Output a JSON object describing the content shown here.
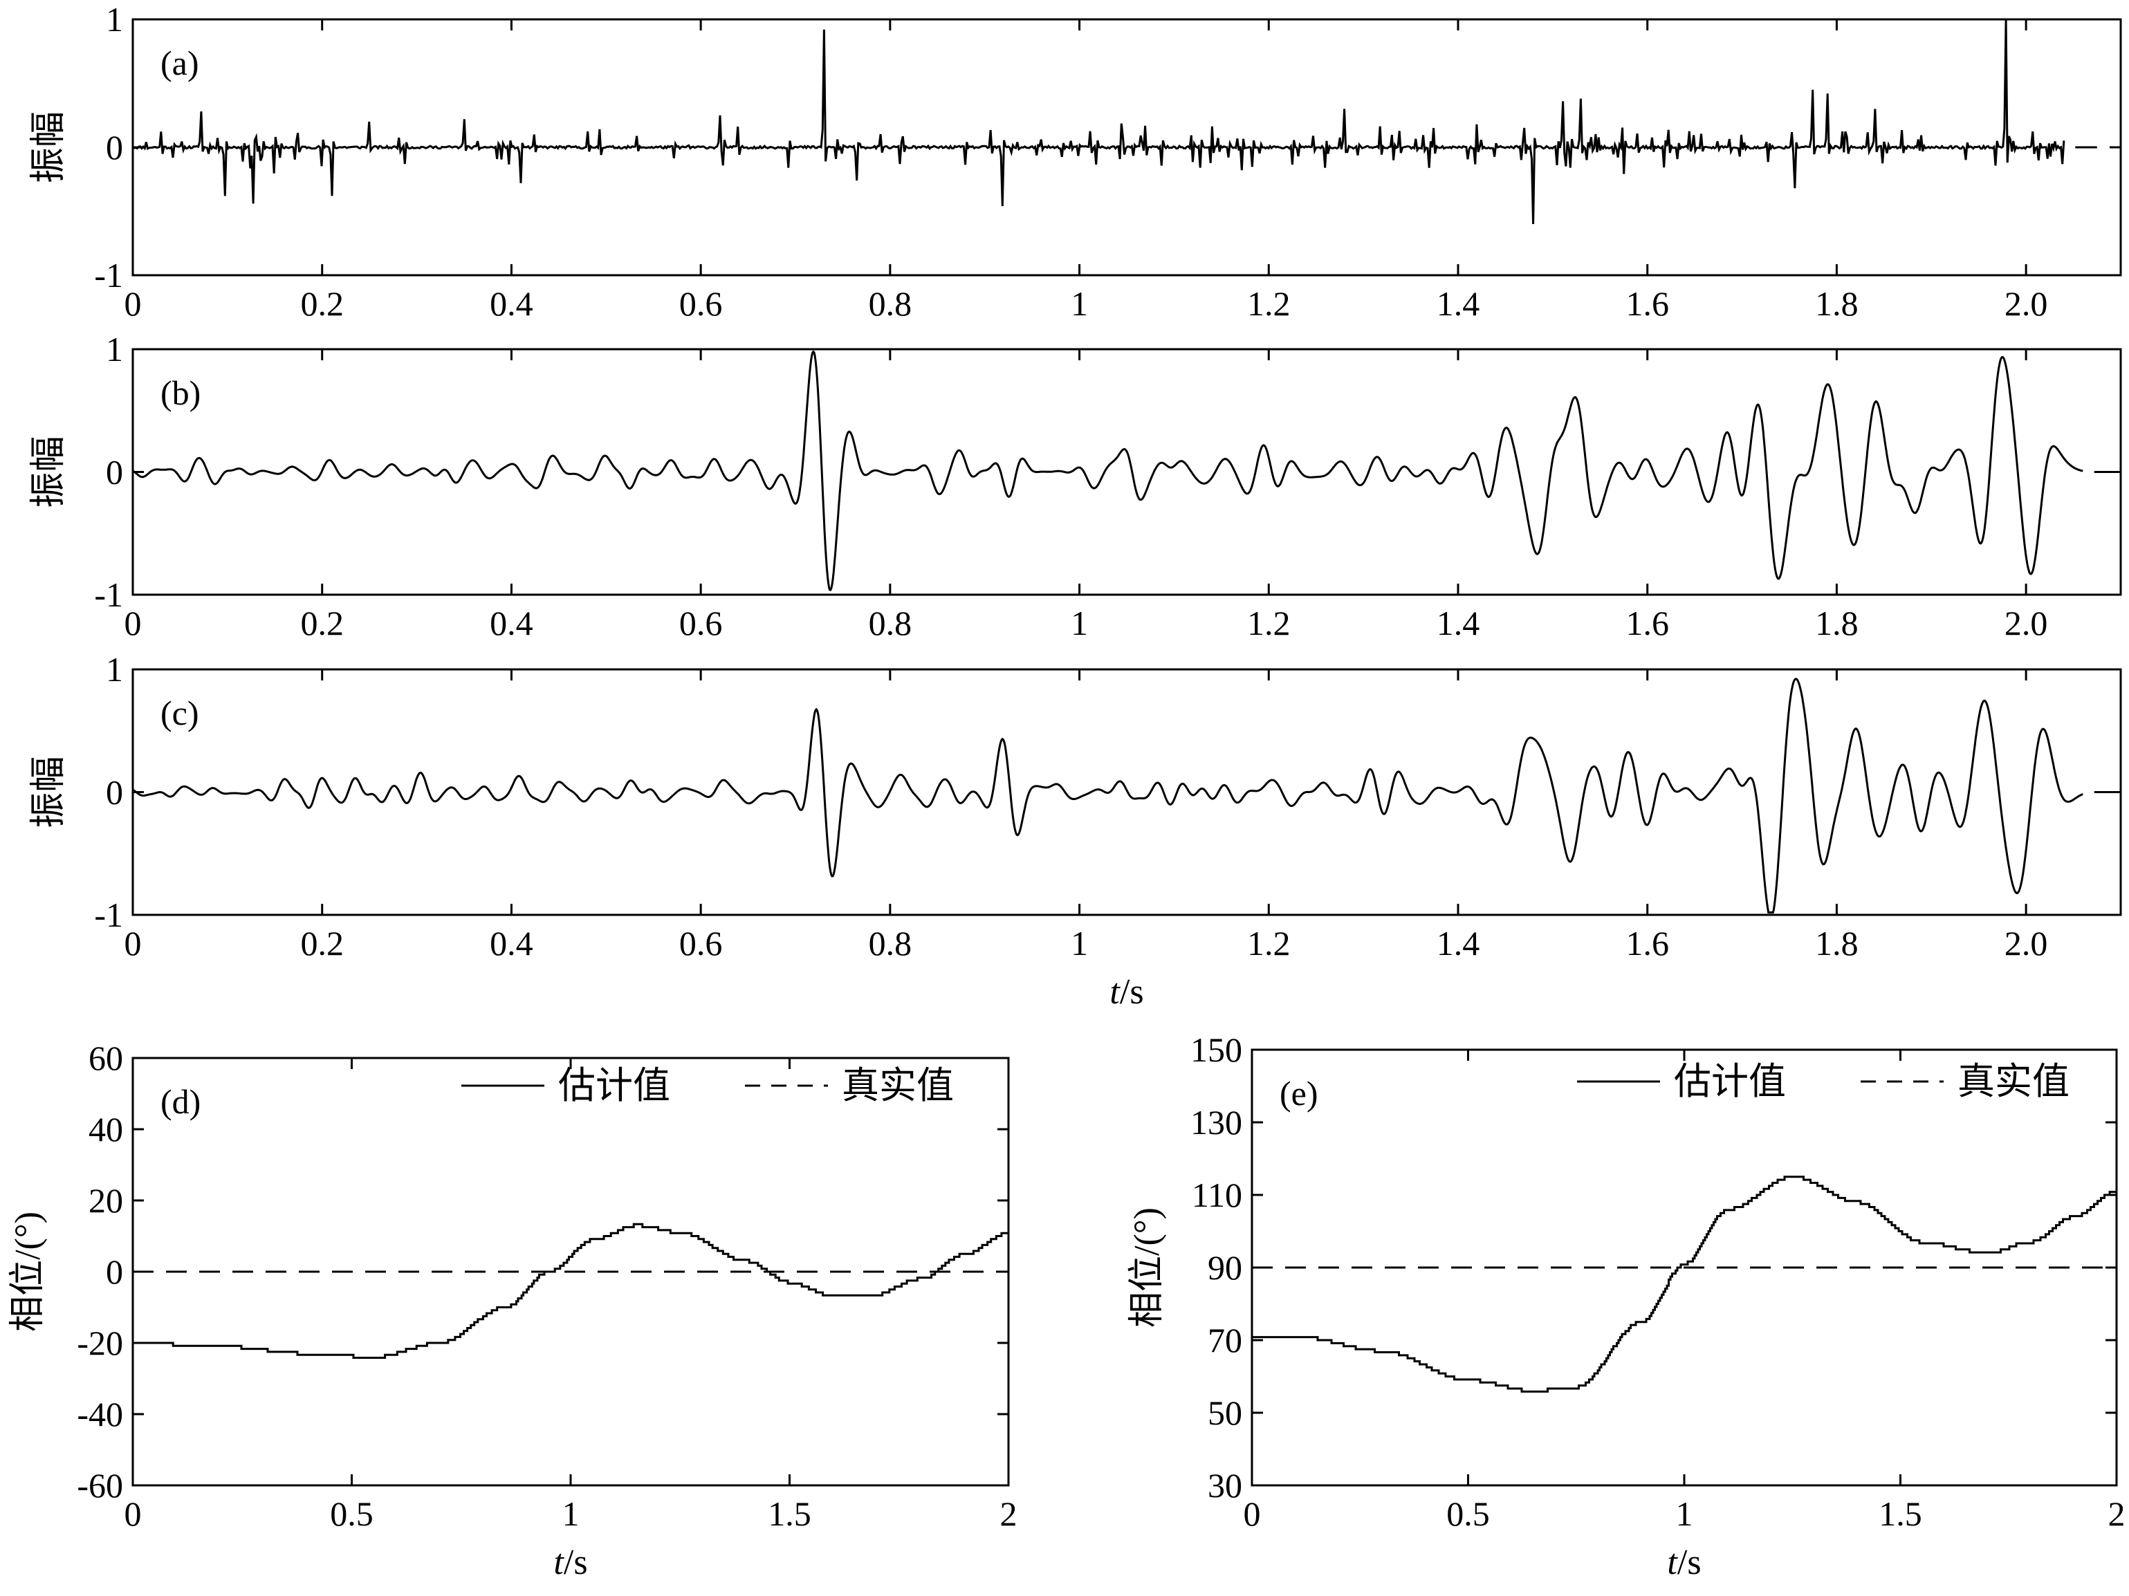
{
  "figure": {
    "background": "#ffffff",
    "line_color": "#000000"
  },
  "chart_data": [
    {
      "id": "a",
      "type": "line",
      "panel_label": "(a)",
      "ylabel": "振幅",
      "xlim": [
        0,
        2.1
      ],
      "ylim": [
        -1,
        1
      ],
      "xticks": [
        "0",
        "0.2",
        "0.4",
        "0.6",
        "0.8",
        "1",
        "1.2",
        "1.4",
        "1.6",
        "1.8",
        "2.0"
      ],
      "yticks": [
        "-1",
        "0",
        "1"
      ],
      "signal": {
        "kind": "sparse_spikes",
        "seed": 11,
        "x_end": 2.04,
        "points": 1300,
        "prominent_spikes": [
          [
            0.073,
            0.28
          ],
          [
            0.098,
            -0.38
          ],
          [
            0.127,
            -0.44
          ],
          [
            0.21,
            -0.38
          ],
          [
            0.25,
            0.2
          ],
          [
            0.35,
            0.22
          ],
          [
            0.41,
            -0.28
          ],
          [
            0.62,
            0.25
          ],
          [
            0.73,
            0.92
          ],
          [
            0.765,
            -0.26
          ],
          [
            0.918,
            -0.46
          ],
          [
            1.28,
            0.3
          ],
          [
            1.48,
            -0.6
          ],
          [
            1.51,
            0.36
          ],
          [
            1.53,
            0.38
          ],
          [
            1.755,
            -0.32
          ],
          [
            1.775,
            0.45
          ],
          [
            1.79,
            0.42
          ],
          [
            1.84,
            0.3
          ],
          [
            1.978,
            1.0
          ]
        ]
      }
    },
    {
      "id": "b",
      "type": "line",
      "panel_label": "(b)",
      "ylabel": "振幅",
      "xlim": [
        0,
        2.1
      ],
      "ylim": [
        -1,
        1
      ],
      "xticks": [
        "0",
        "0.2",
        "0.4",
        "0.6",
        "0.8",
        "1",
        "1.2",
        "1.4",
        "1.6",
        "1.8",
        "2.0"
      ],
      "yticks": [
        "-1",
        "0",
        "1"
      ],
      "signal": {
        "kind": "wavelet_trace",
        "seed": 23,
        "x_end": 2.06,
        "wavelets": [
          [
            0.72,
            0.8,
            40
          ],
          [
            0.735,
            -0.55,
            40
          ],
          [
            0.92,
            0.22,
            45
          ],
          [
            0.925,
            -0.38,
            45
          ],
          [
            1.48,
            -0.5,
            30
          ],
          [
            1.52,
            0.3,
            30
          ],
          [
            1.74,
            -0.7,
            28
          ],
          [
            1.79,
            0.6,
            30
          ],
          [
            1.84,
            0.5,
            30
          ],
          [
            1.978,
            0.8,
            28
          ],
          [
            2.0,
            -0.4,
            28
          ]
        ]
      }
    },
    {
      "id": "c",
      "type": "line",
      "panel_label": "(c)",
      "ylabel": "振幅",
      "xlabel": "t/s",
      "xlim": [
        0,
        2.1
      ],
      "ylim": [
        -1,
        1
      ],
      "xticks": [
        "0",
        "0.2",
        "0.4",
        "0.6",
        "0.8",
        "1",
        "1.2",
        "1.4",
        "1.6",
        "1.8",
        "2.0"
      ],
      "yticks": [
        "-1",
        "0",
        "1"
      ],
      "signal": {
        "kind": "wavelet_trace",
        "seed": 37,
        "x_end": 2.06,
        "wavelets": [
          [
            0.725,
            0.72,
            40
          ],
          [
            0.735,
            -0.6,
            40
          ],
          [
            0.92,
            0.38,
            45
          ],
          [
            0.93,
            -0.3,
            45
          ],
          [
            1.48,
            0.42,
            30
          ],
          [
            1.52,
            -0.35,
            30
          ],
          [
            1.73,
            -0.62,
            28
          ],
          [
            1.76,
            0.55,
            28
          ],
          [
            1.82,
            0.32,
            30
          ],
          [
            1.96,
            0.55,
            28
          ],
          [
            1.985,
            -0.7,
            28
          ]
        ]
      }
    },
    {
      "id": "d",
      "type": "line",
      "panel_label": "(d)",
      "ylabel": "相位/(°)",
      "xlabel": "t/s",
      "xlim": [
        0,
        2
      ],
      "ylim": [
        -60,
        60
      ],
      "xticks": [
        "0",
        "0.5",
        "1",
        "1.5",
        "2"
      ],
      "yticks": [
        "-60",
        "-40",
        "-20",
        "0",
        "20",
        "40",
        "60"
      ],
      "legend": {
        "position": "top-right",
        "entries": [
          {
            "label": "估计值",
            "style": "solid"
          },
          {
            "label": "真实值",
            "style": "dashed"
          }
        ]
      },
      "series": [
        {
          "name": "估计值",
          "style": "solid",
          "x": [
            0,
            0.2,
            0.4,
            0.55,
            0.7,
            0.85,
            0.95,
            1.05,
            1.15,
            1.25,
            1.4,
            1.5,
            1.6,
            1.68,
            1.8,
            1.9,
            2.0
          ],
          "y": [
            -20,
            -21,
            -23,
            -24,
            -20,
            -10,
            0,
            9,
            13,
            11,
            3,
            -3,
            -7,
            -7,
            -2,
            5,
            11
          ]
        },
        {
          "name": "真实值",
          "style": "dashed",
          "x": [
            0,
            2
          ],
          "y": [
            0,
            0
          ]
        }
      ]
    },
    {
      "id": "e",
      "type": "line",
      "panel_label": "(e)",
      "ylabel": "相位/(°)",
      "xlabel": "t/s",
      "xlim": [
        0,
        2
      ],
      "ylim": [
        30,
        150
      ],
      "xticks": [
        "0",
        "0.5",
        "1",
        "1.5",
        "2"
      ],
      "yticks": [
        "30",
        "50",
        "70",
        "90",
        "110",
        "130",
        "150"
      ],
      "legend": {
        "position": "top-right",
        "entries": [
          {
            "label": "估计值",
            "style": "solid"
          },
          {
            "label": "真实值",
            "style": "dashed"
          }
        ]
      },
      "series": [
        {
          "name": "估计值",
          "style": "solid",
          "x": [
            0,
            0.1,
            0.3,
            0.5,
            0.65,
            0.75,
            0.9,
            1.0,
            1.1,
            1.25,
            1.4,
            1.55,
            1.7,
            1.8,
            1.9,
            2.0
          ],
          "y": [
            71,
            71,
            67,
            59,
            56,
            57,
            75,
            91,
            106,
            115,
            108,
            97,
            94,
            97,
            104,
            111
          ]
        },
        {
          "name": "真实值",
          "style": "dashed",
          "x": [
            0,
            2
          ],
          "y": [
            90,
            90
          ]
        }
      ]
    }
  ]
}
